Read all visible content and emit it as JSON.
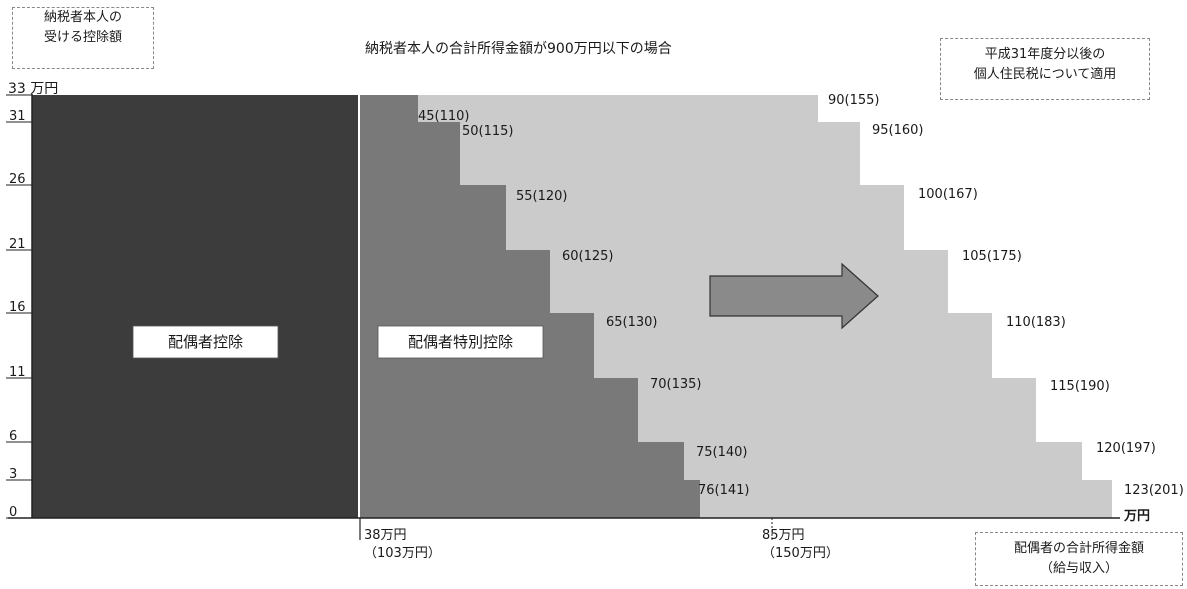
{
  "y_axis_box": {
    "line1": "納税者本人の",
    "line2": "受ける控除額"
  },
  "title": "納税者本人の合計所得金額が900万円以下の場合",
  "applicability_box": {
    "line1": "平成31年度分以後の",
    "line2": "個人住民税について適用"
  },
  "x_axis_box": {
    "line1": "配偶者の合計所得金額",
    "line2": "（給与収入）"
  },
  "y_top_label": "33 万円",
  "y_ticks": [
    "31",
    "26",
    "21",
    "16",
    "11",
    "6",
    "3",
    "0"
  ],
  "region_labels": {
    "spouse_deduction": "配偶者控除",
    "special_deduction": "配偶者特別控除"
  },
  "x_marks": [
    {
      "line1": "38万円",
      "line2": "（103万円）"
    },
    {
      "line1": "85万円",
      "line2": "（150万円）"
    }
  ],
  "x_end_unit": "万円",
  "step_labels": [
    "45(110)",
    "50(115)",
    "55(120)",
    "60(125)",
    "65(130)",
    "70(135)",
    "75(140)",
    "76(141)",
    "90(155)",
    "95(160)",
    "100(167)",
    "105(175)",
    "110(183)",
    "115(190)",
    "120(197)",
    "123(201)"
  ],
  "colors": {
    "dark": "#3c3c3c",
    "mid": "#797979",
    "light": "#cbcbcb",
    "arrow": "#8a8a8a"
  }
}
